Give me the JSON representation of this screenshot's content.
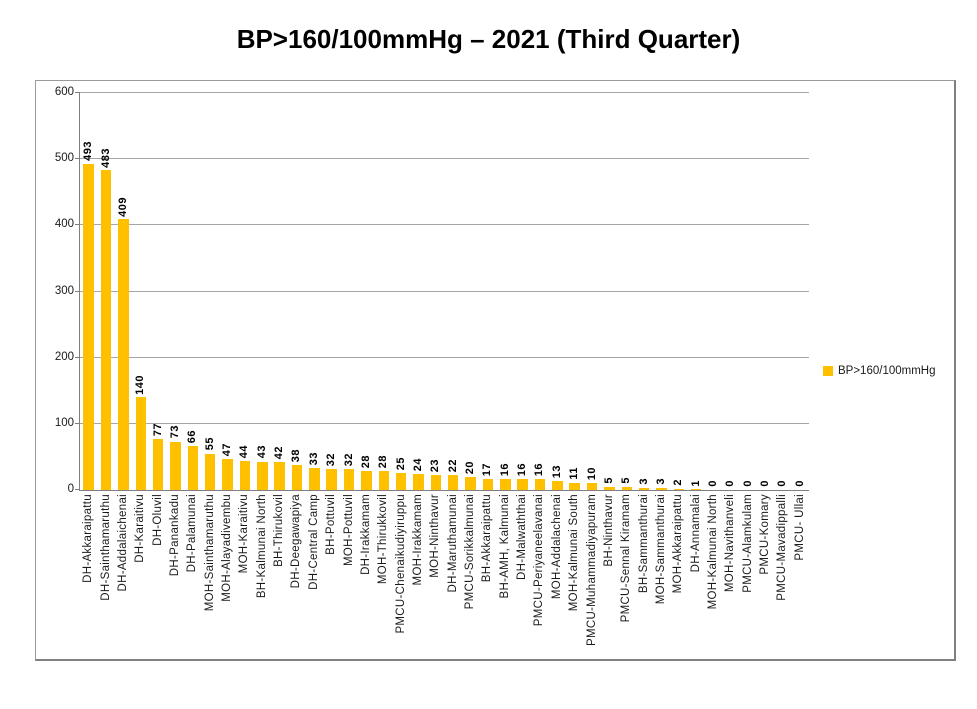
{
  "title": "BP>160/100mmHg – 2021 (Third Quarter)",
  "legend": {
    "label": "BP>160/100mmHg",
    "swatch_color": "#FFC000"
  },
  "colors": {
    "bar": "#FFC000",
    "gridline": "#A6A6A6",
    "axis": "#7F7F7F",
    "frame_border": "#808080",
    "text": "#1A1A1A"
  },
  "chart_data": {
    "type": "bar",
    "title": "BP>160/100mmHg – 2021 (Third Quarter)",
    "legend_entries": [
      "BP>160/100mmHg"
    ],
    "legend_position": "right",
    "grid": true,
    "data_labels": true,
    "label_rotation": 90,
    "bar_color": "#FFC000",
    "ylim": [
      0,
      600
    ],
    "yticks": [
      0,
      100,
      200,
      300,
      400,
      500,
      600
    ],
    "xlabel": "",
    "ylabel": "",
    "categories": [
      "DH-Akkaraipattu",
      "DH-Sainthamaruthu",
      "DH-Addalaichenai",
      "DH-Karaitivu",
      "DH-Oluvil",
      "DH-Panankadu",
      "DH-Palamunai",
      "MOH-Sainthamaruthu",
      "MOH-Alayadivembu",
      "MOH-Karaitivu",
      "BH-Kalmunai North",
      "BH-Thirukovil",
      "DH-Deegawapiya",
      "DH-Central Camp",
      "BH-Pottuvil",
      "MOH-Pottuvil",
      "DH-Irakkamam",
      "MOH-Thirukkovil",
      "PMCU-Chenaikudiyiruppu",
      "MOH-Irakkamam",
      "MOH-Ninthavur",
      "DH-Maruthamunai",
      "PMCU-Sorikkalmunai",
      "BH-Akkaraipattu",
      "BH-AMH, Kalmunai",
      "DH-Malwaththai",
      "PMCU-Periyaneelavanai",
      "MOH-Addalachenai",
      "MOH-Kalmunai South",
      "PMCU-Muhammadiyapuram",
      "BH-Ninthavur",
      "PMCU-Sennal Kiramam",
      "BH-Sammanthurai",
      "MOH-Sammanthurai",
      "MOH-Akkaraipattu",
      "DH-Annamalai",
      "MOH-Kalmunai North",
      "MOH-Navithanveli",
      "PMCU-Alamkulam",
      "PMCU-Komary",
      "PMCU-Mavadippalli",
      "PMCU- Ullai"
    ],
    "values": [
      493,
      483,
      409,
      140,
      77,
      73,
      66,
      55,
      47,
      44,
      43,
      42,
      38,
      33,
      32,
      32,
      28,
      28,
      25,
      24,
      23,
      22,
      20,
      17,
      16,
      16,
      16,
      13,
      11,
      10,
      5,
      5,
      3,
      3,
      2,
      1,
      0,
      0,
      0,
      0,
      0,
      0
    ]
  }
}
